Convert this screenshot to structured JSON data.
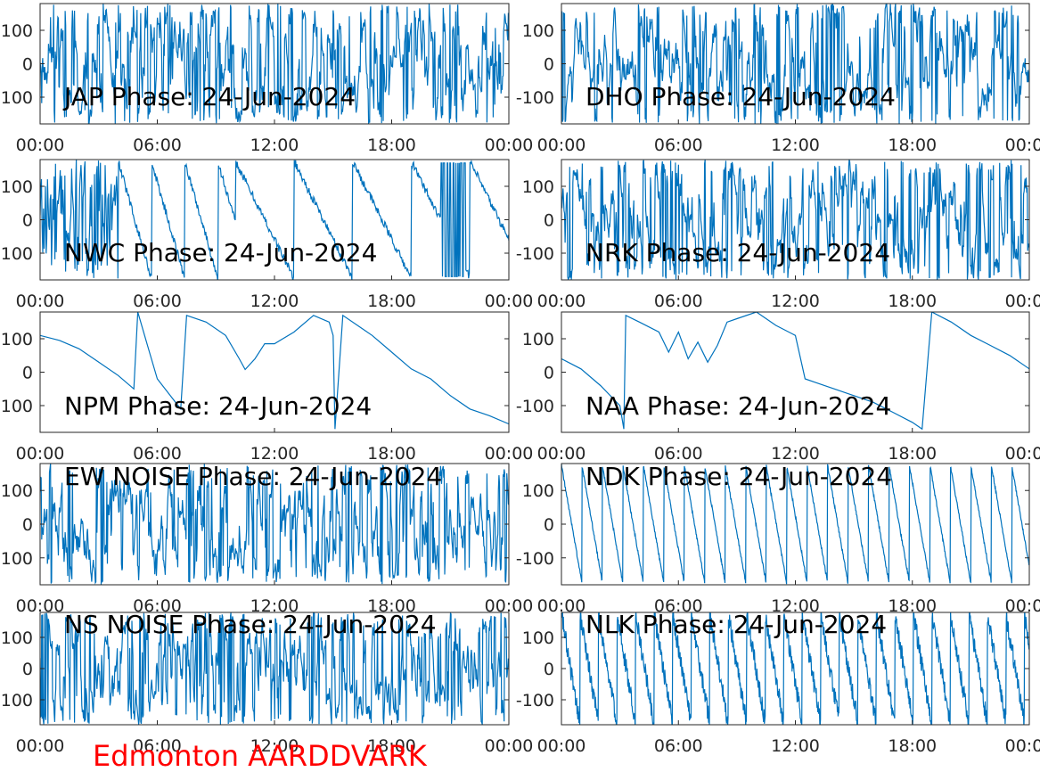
{
  "figure_caption": "Edmonton AARDDVARK",
  "colors": {
    "trace": "#0072bd",
    "axes": "#262626",
    "caption": "#ff0000",
    "background": "#ffffff"
  },
  "chart_data": [
    {
      "type": "line",
      "title": "JAP Phase: 24-Jun-2024",
      "xlabel": "",
      "ylabel": "",
      "xlim": [
        "00:00",
        "24:00"
      ],
      "ylim": [
        -180,
        180
      ],
      "xticks": [
        "00:00",
        "06:00",
        "12:00",
        "18:00",
        "00:00"
      ],
      "yticks": [
        "-100",
        "0",
        "100"
      ],
      "series": [
        {
          "values_description_style": "noise",
          "x": [
            0,
            4,
            8,
            12,
            16,
            20,
            24
          ],
          "y": [
            30,
            -60,
            90,
            -120,
            150,
            -20,
            60
          ]
        }
      ]
    },
    {
      "type": "line",
      "title": "DHO Phase: 24-Jun-2024",
      "xlabel": "",
      "ylabel": "",
      "xlim": [
        "00:00",
        "24:00"
      ],
      "ylim": [
        -180,
        180
      ],
      "xticks": [
        "00:00",
        "06:00",
        "12:00",
        "18:00",
        "00:00"
      ],
      "yticks": [
        "-100",
        "0",
        "100"
      ],
      "series": [
        {
          "values_description_style": "noise",
          "x": [
            0,
            4,
            8,
            12,
            16,
            20,
            24
          ],
          "y": [
            -40,
            120,
            -150,
            80,
            -10,
            160,
            -90
          ]
        }
      ]
    },
    {
      "type": "line",
      "title": "NWC Phase: 24-Jun-2024",
      "xlabel": "",
      "ylabel": "",
      "xlim": [
        "00:00",
        "24:00"
      ],
      "ylim": [
        -180,
        180
      ],
      "xticks": [
        "00:00",
        "06:00",
        "12:00",
        "18:00",
        "00:00"
      ],
      "yticks": [
        "-100",
        "0",
        "100"
      ],
      "series": [
        {
          "values_description_style": "mixed",
          "x": [
            0,
            3.5,
            4.5,
            6.5,
            8.5,
            10,
            13,
            16,
            21,
            24
          ],
          "y": [
            20,
            40,
            -100,
            -120,
            -80,
            -160,
            -140,
            -170,
            -50,
            -50
          ]
        }
      ]
    },
    {
      "type": "line",
      "title": "NRK Phase: 24-Jun-2024",
      "xlabel": "",
      "ylabel": "",
      "xlim": [
        "00:00",
        "24:00"
      ],
      "ylim": [
        -180,
        180
      ],
      "xticks": [
        "00:00",
        "06:00",
        "12:00",
        "18:00",
        "00:00"
      ],
      "yticks": [
        "-100",
        "0",
        "100"
      ],
      "series": [
        {
          "values_description_style": "noise",
          "x": [
            0,
            6,
            10,
            12,
            14,
            18,
            24
          ],
          "y": [
            60,
            -80,
            40,
            -150,
            120,
            -30,
            90
          ]
        }
      ]
    },
    {
      "type": "line",
      "title": "NPM Phase: 24-Jun-2024",
      "xlabel": "",
      "ylabel": "",
      "xlim": [
        "00:00",
        "24:00"
      ],
      "ylim": [
        -180,
        180
      ],
      "xticks": [
        "00:00",
        "06:00",
        "12:00",
        "18:00",
        "00:00"
      ],
      "yticks": [
        "-100",
        "0",
        "100"
      ],
      "series": [
        {
          "name": "",
          "x": [
            0,
            1,
            2,
            3,
            4,
            4.8,
            5.0,
            5.5,
            6.0,
            6.8,
            7.2,
            7.5,
            8.5,
            9.5,
            10.2,
            10.5,
            11,
            11.5,
            12,
            13,
            14,
            14.8,
            15,
            15.1,
            15.5,
            16.5,
            17,
            18,
            19,
            20,
            21,
            22,
            23,
            24
          ],
          "y": [
            110,
            95,
            70,
            30,
            -10,
            -50,
            180,
            80,
            -20,
            -80,
            -110,
            170,
            150,
            110,
            40,
            8,
            40,
            85,
            85,
            120,
            170,
            150,
            110,
            -170,
            170,
            130,
            110,
            60,
            10,
            -20,
            -70,
            -110,
            -130,
            -155
          ]
        }
      ]
    },
    {
      "type": "line",
      "title": "NAA Phase: 24-Jun-2024",
      "xlabel": "",
      "ylabel": "",
      "xlim": [
        "00:00",
        "24:00"
      ],
      "ylim": [
        -180,
        180
      ],
      "xticks": [
        "00:00",
        "06:00",
        "12:00",
        "18:00",
        "00:00"
      ],
      "yticks": [
        "-100",
        "0",
        "100"
      ],
      "series": [
        {
          "name": "",
          "x": [
            0,
            1,
            2,
            3,
            3.2,
            3.3,
            4,
            5,
            5.5,
            6,
            6.5,
            7,
            7.5,
            8,
            8.5,
            9,
            10,
            11,
            12,
            12.5,
            13,
            14,
            15,
            16,
            17,
            18,
            18.5,
            19,
            20,
            21,
            22,
            23,
            24
          ],
          "y": [
            40,
            10,
            -40,
            -100,
            -170,
            170,
            150,
            120,
            60,
            120,
            40,
            90,
            30,
            80,
            150,
            160,
            180,
            140,
            110,
            -20,
            -30,
            -50,
            -70,
            -90,
            -120,
            -150,
            -170,
            180,
            150,
            110,
            80,
            50,
            10
          ]
        }
      ]
    },
    {
      "type": "line",
      "title": "EW NOISE Phase: 24-Jun-2024",
      "xlabel": "",
      "ylabel": "",
      "xlim": [
        "00:00",
        "24:00"
      ],
      "ylim": [
        -180,
        180
      ],
      "xticks": [
        "00:00",
        "06:00",
        "12:00",
        "18:00",
        "00:00"
      ],
      "yticks": [
        "-100",
        "0",
        "100"
      ],
      "series": [
        {
          "values_description_style": "noise",
          "x": [
            0,
            4,
            8,
            12,
            16,
            20,
            24
          ],
          "y": [
            50,
            -100,
            0,
            -60,
            120,
            -40,
            20
          ]
        }
      ]
    },
    {
      "type": "line",
      "title": "NDK Phase: 24-Jun-2024",
      "xlabel": "",
      "ylabel": "",
      "xlim": [
        "00:00",
        "24:00"
      ],
      "ylim": [
        -180,
        180
      ],
      "xticks": [
        "00:00",
        "06:00",
        "12:00",
        "18:00",
        "00:00"
      ],
      "yticks": [
        "-100",
        "0",
        "100"
      ],
      "series": [
        {
          "values_description_style": "sawtooth",
          "x": [
            0,
            24
          ],
          "y": [
            170,
            20
          ]
        }
      ]
    },
    {
      "type": "line",
      "title": "NS NOISE Phase: 24-Jun-2024",
      "xlabel": "",
      "ylabel": "",
      "xlim": [
        "00:00",
        "24:00"
      ],
      "ylim": [
        -180,
        180
      ],
      "xticks": [
        "00:00",
        "06:00",
        "12:00",
        "18:00",
        "00:00"
      ],
      "yticks": [
        "-100",
        "0",
        "100"
      ],
      "series": [
        {
          "values_description_style": "noise",
          "x": [
            0,
            4,
            8,
            12,
            16,
            20,
            24
          ],
          "y": [
            0,
            60,
            -80,
            -100,
            20,
            100,
            -30
          ]
        }
      ]
    },
    {
      "type": "line",
      "title": "NLK Phase: 24-Jun-2024",
      "xlabel": "",
      "ylabel": "",
      "xlim": [
        "00:00",
        "24:00"
      ],
      "ylim": [
        -180,
        180
      ],
      "xticks": [
        "00:00",
        "06:00",
        "12:00",
        "18:00",
        "00:00"
      ],
      "yticks": [
        "-100",
        "0",
        "100"
      ],
      "series": [
        {
          "values_description_style": "sawtooth",
          "x": [
            0,
            24
          ],
          "y": [
            150,
            -150
          ]
        }
      ]
    }
  ]
}
